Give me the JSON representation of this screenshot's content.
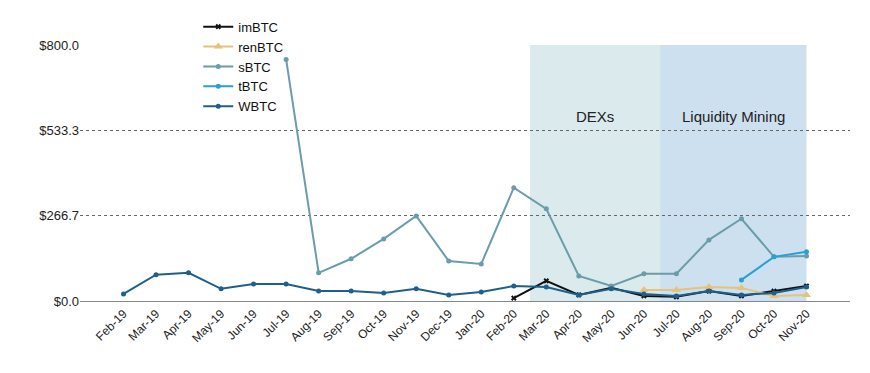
{
  "chart_data": {
    "type": "line",
    "categories": [
      "Feb-19",
      "Mar-19",
      "Apr-19",
      "May-19",
      "Jun-19",
      "Jul-19",
      "Aug-19",
      "Sep-19",
      "Oct-19",
      "Nov-19",
      "Dec-19",
      "Jan-20",
      "Feb-20",
      "Mar-20",
      "Apr-20",
      "May-20",
      "Jun-20",
      "Jul-20",
      "Aug-20",
      "Sep-20",
      "Oct-20",
      "Nov-20"
    ],
    "series": [
      {
        "name": "imBTC",
        "color": "#111111",
        "marker": "x",
        "values": [
          null,
          null,
          null,
          null,
          null,
          null,
          null,
          null,
          null,
          null,
          null,
          null,
          9,
          63,
          19,
          41,
          16,
          13,
          31,
          16,
          31,
          47
        ]
      },
      {
        "name": "renBTC",
        "color": "#e6c27a",
        "marker": "triangle-up",
        "values": [
          null,
          null,
          null,
          null,
          null,
          null,
          null,
          null,
          null,
          null,
          null,
          null,
          null,
          null,
          null,
          null,
          34,
          34,
          44,
          41,
          16,
          19
        ]
      },
      {
        "name": "sBTC",
        "color": "#6b9cab",
        "marker": "circle",
        "values": [
          null,
          null,
          null,
          null,
          null,
          755,
          88,
          132,
          194,
          266,
          125,
          116,
          354,
          288,
          78,
          47,
          85,
          85,
          191,
          257,
          138,
          141
        ]
      },
      {
        "name": "tBTC",
        "color": "#2a9fd3",
        "marker": "circle",
        "values": [
          null,
          null,
          null,
          null,
          null,
          null,
          null,
          null,
          null,
          null,
          null,
          null,
          null,
          null,
          null,
          null,
          null,
          null,
          null,
          66,
          138,
          154
        ]
      },
      {
        "name": "WBTC",
        "color": "#1f5f8b",
        "marker": "circle",
        "values": [
          22,
          82,
          88,
          38,
          53,
          53,
          31,
          31,
          25,
          38,
          19,
          28,
          47,
          44,
          19,
          38,
          22,
          16,
          31,
          19,
          25,
          44
        ]
      }
    ],
    "annotations": [
      {
        "text": "DEXs",
        "start": "Mar-20",
        "end": "Jun-20"
      },
      {
        "text": "Liquidity Mining",
        "start": "Jul-20",
        "end": "Nov-20"
      }
    ],
    "ylim": [
      0,
      800
    ],
    "yticks": [
      {
        "value": 0,
        "label": "$0.0"
      },
      {
        "value": 266.7,
        "label": "$266.7"
      },
      {
        "value": 533.3,
        "label": "$533.3"
      },
      {
        "value": 800,
        "label": "$800.0"
      }
    ],
    "grid": true,
    "legend": "top"
  }
}
